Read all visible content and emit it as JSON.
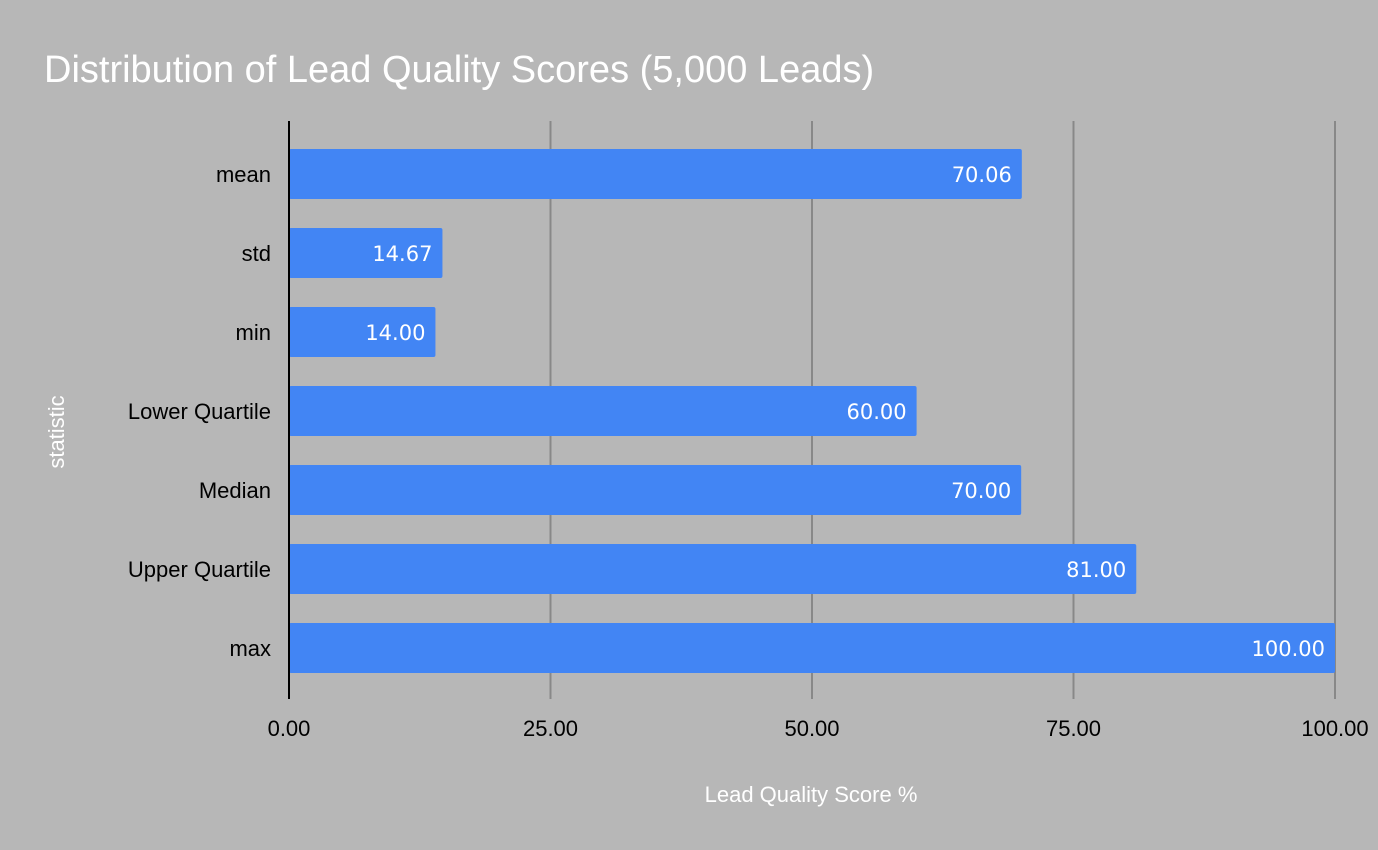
{
  "chart_data": {
    "type": "bar",
    "orientation": "horizontal",
    "title": "Distribution of Lead Quality Scores (5,000 Leads)",
    "xlabel": "Lead Quality Score %",
    "ylabel": "statistic",
    "categories": [
      "mean",
      "std",
      "min",
      "Lower Quartile",
      "Median",
      "Upper Quartile",
      "max"
    ],
    "values": [
      70.06,
      14.67,
      14.0,
      60.0,
      70.0,
      81.0,
      100.0
    ],
    "data_labels": [
      "70.06",
      "14.67",
      "14.00",
      "60.00",
      "70.00",
      "81.00",
      "100.00"
    ],
    "xlim": [
      0,
      100
    ],
    "x_ticks": [
      0,
      25,
      50,
      75,
      100
    ],
    "x_tick_labels": [
      "0.00",
      "25.00",
      "50.00",
      "75.00",
      "100.00"
    ],
    "grid": "vertical",
    "legend": "none",
    "colors": {
      "background": "#b7b7b7",
      "bar": "#4285f4",
      "gridline": "#888888",
      "axis": "#000000",
      "title": "#ffffff",
      "axis_title": "#ffffff",
      "label": "#000000",
      "data_label": "#ffffff"
    }
  }
}
